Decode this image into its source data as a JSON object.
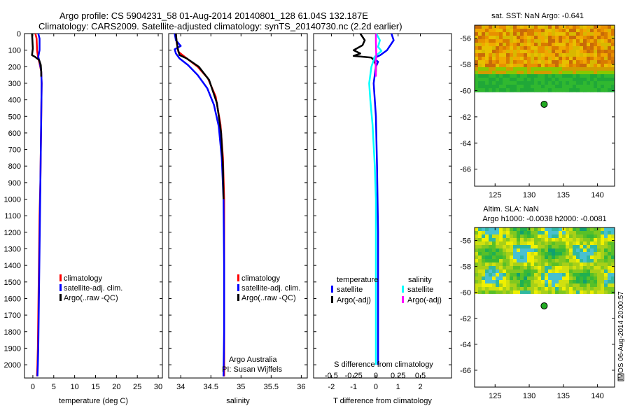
{
  "header": {
    "line1": "Argo profile: CS 5904231_58 01-Aug-2014 20140801_128 61.04S 132.187E",
    "line2": "Climatology: CARS2009. Satellite-adjusted climatology: synTS_20140730.nc (2.2d earlier)"
  },
  "colors": {
    "climatology": "#ff0000",
    "satellite": "#0000ff",
    "argo": "#000000",
    "sal_satellite": "#00ffff",
    "sal_argo": "#ff00ff",
    "float_marker": "#22aa22"
  },
  "depth_axis": {
    "ticks": [
      0,
      100,
      200,
      300,
      400,
      500,
      600,
      700,
      800,
      900,
      1000,
      1100,
      1200,
      1300,
      1400,
      1500,
      1600,
      1700,
      1800,
      1900,
      2000
    ],
    "ylim": [
      0,
      2080
    ]
  },
  "chart_data": [
    {
      "type": "line",
      "name": "temperature",
      "xlabel": "temperature (deg C)",
      "xlim": [
        -2,
        31
      ],
      "xticks": [
        0,
        5,
        10,
        15,
        20,
        25,
        30
      ],
      "ylim": [
        0,
        2080
      ],
      "legend": [
        "climatology",
        "satellite-adj. clim.",
        "Argo(..raw -QC)"
      ],
      "legend_placement": "lower-center",
      "series": [
        {
          "name": "climatology",
          "x": [
            0.6,
            0.9,
            1.0,
            1.3,
            1.6,
            2.0,
            2.1,
            2.0,
            1.9,
            1.8,
            1.6,
            1.5,
            1.4,
            1.3,
            1.2,
            1.1,
            1.0
          ],
          "y": [
            0,
            30,
            100,
            150,
            180,
            230,
            300,
            500,
            700,
            900,
            1100,
            1300,
            1500,
            1700,
            1900,
            2000,
            2070
          ]
        },
        {
          "name": "satellite-adj. clim.",
          "x": [
            1.3,
            1.6,
            1.6,
            1.3,
            1.7,
            2.0,
            2.1,
            2.0,
            1.9,
            1.8,
            1.7,
            1.6,
            1.5,
            1.4,
            1.3,
            1.2,
            1.1
          ],
          "y": [
            0,
            30,
            100,
            140,
            180,
            230,
            300,
            500,
            700,
            900,
            1100,
            1300,
            1500,
            1700,
            1900,
            2000,
            2070
          ]
        },
        {
          "name": "Argo(..raw -QC)",
          "x": [
            -0.2,
            -0.1,
            0.0,
            -0.2,
            0.5,
            1.5,
            1.9,
            2.0,
            2.0
          ],
          "y": [
            0,
            40,
            90,
            130,
            140,
            160,
            190,
            230,
            260
          ]
        }
      ]
    },
    {
      "type": "line",
      "name": "salinity",
      "xlabel": "salinity",
      "xlim": [
        33.8,
        36.1
      ],
      "xticks": [
        34,
        34.5,
        35,
        35.5,
        36
      ],
      "ylim": [
        0,
        2080
      ],
      "legend": [
        "climatology",
        "satellite-adj. clim.",
        "Argo(..raw -QC)"
      ],
      "legend_placement": "lower-center",
      "annotation": [
        "Argo Australia",
        "PI: Susan Wijffels"
      ],
      "series": [
        {
          "name": "climatology",
          "x": [
            33.92,
            33.93,
            33.96,
            34.1,
            34.28,
            34.45,
            34.58,
            34.66,
            34.7,
            34.72,
            34.72,
            34.72,
            34.72
          ],
          "y": [
            0,
            50,
            110,
            150,
            200,
            270,
            380,
            550,
            750,
            1000,
            1400,
            1800,
            2070
          ]
        },
        {
          "name": "satellite-adj. clim.",
          "x": [
            33.9,
            33.92,
            34.0,
            33.9,
            33.92,
            33.98,
            34.12,
            34.28,
            34.44,
            34.55,
            34.63,
            34.68,
            34.71,
            34.72,
            34.72,
            34.71
          ],
          "y": [
            0,
            40,
            75,
            95,
            120,
            150,
            190,
            250,
            330,
            430,
            560,
            750,
            1000,
            1400,
            1800,
            2070
          ]
        },
        {
          "name": "Argo(..raw -QC)",
          "x": [
            33.92,
            33.93,
            33.95,
            33.98,
            34.1,
            34.3,
            34.47,
            34.6,
            34.67,
            34.7,
            34.71
          ],
          "y": [
            0,
            40,
            90,
            130,
            150,
            200,
            280,
            420,
            600,
            800,
            1000
          ]
        }
      ]
    },
    {
      "type": "line",
      "name": "difference from climatology",
      "xlabel": "T difference from climatology",
      "xlabel_top": "S difference from climatology",
      "xlim": [
        -2.8,
        3.4
      ],
      "xticks": [
        -2,
        -1,
        0,
        1,
        2
      ],
      "xlim_top": [
        -0.7,
        0.85
      ],
      "xticks_top": [
        -0.5,
        -0.25,
        0,
        0.25,
        0.5
      ],
      "ylim": [
        0,
        2080
      ],
      "legend_headers": [
        "temperature",
        "salinity"
      ],
      "legend": [
        "satellite",
        "Argo(-adj)",
        "satellite",
        "Argo(-adj)"
      ],
      "legend_placement": "lower-center",
      "series": [
        {
          "name": "satellite",
          "group": "temperature",
          "x": [
            0.7,
            0.8,
            0.5,
            0.2,
            -0.1,
            0.1,
            0.0,
            -0.1,
            0.0,
            0.05,
            0.1,
            0.1,
            0.1
          ],
          "y": [
            0,
            40,
            100,
            130,
            150,
            170,
            200,
            300,
            500,
            800,
            1200,
            1600,
            2000
          ]
        },
        {
          "name": "Argo(-adj)",
          "group": "temperature",
          "x": [
            -0.7,
            -0.5,
            -0.6,
            -1.0,
            -0.7,
            -1.0,
            -0.2,
            -0.1,
            0.0,
            0.0
          ],
          "y": [
            0,
            40,
            70,
            100,
            120,
            135,
            145,
            160,
            190,
            230
          ]
        },
        {
          "name": "satellite",
          "group": "salinity",
          "x": [
            0.02,
            0.18,
            0.1,
            0.25,
            -0.05,
            -0.2,
            -0.3,
            -0.25,
            -0.15,
            -0.05,
            0.0,
            0.0,
            0.0
          ],
          "y": [
            0,
            40,
            80,
            105,
            140,
            200,
            300,
            400,
            550,
            800,
            1000,
            1600,
            2000
          ]
        },
        {
          "name": "Argo(-adj)",
          "group": "salinity",
          "x": [
            0.0,
            0.0,
            0.01,
            0.02,
            -0.02,
            0.0,
            0.0
          ],
          "y": [
            0,
            50,
            100,
            140,
            170,
            200,
            260
          ]
        }
      ]
    },
    {
      "type": "heatmap",
      "name": "sat. SST",
      "title": "sat. SST: NaN Argo: -0.641",
      "xticks": [
        125,
        130,
        135,
        140
      ],
      "yticks": [
        -56,
        -58,
        -60,
        -62,
        -64,
        -66
      ],
      "xlim": [
        122,
        142.5
      ],
      "ylim": [
        -67.3,
        -55
      ],
      "marker": {
        "lon": 132.187,
        "lat": -61.04
      },
      "data_lat_range": [
        -60.1,
        -55
      ],
      "palette": [
        "#d8b800",
        "#e8c000",
        "#f0a800",
        "#e89000",
        "#d87a00",
        "#c86a08",
        "#d09c00",
        "#88c800",
        "#30b830",
        "#20a838"
      ]
    },
    {
      "type": "heatmap",
      "name": "Altim. SLA",
      "title": "Altim. SLA: NaN",
      "subtitle": "Argo h1000: -0.0038 h2000: -0.0081",
      "xticks": [
        125,
        130,
        135,
        140
      ],
      "yticks": [
        -56,
        -58,
        -60,
        -62,
        -64,
        -66
      ],
      "xlim": [
        122,
        142.5
      ],
      "ylim": [
        -67.3,
        -55
      ],
      "marker": {
        "lon": 132.187,
        "lat": -61.04
      },
      "data_lat_range": [
        -60.1,
        -55
      ],
      "palette": [
        "#10a070",
        "#20b050",
        "#38b838",
        "#58c028",
        "#80c820",
        "#a8d018",
        "#d0e010",
        "#f0f000",
        "#30b8a0",
        "#48c0d0"
      ]
    }
  ],
  "footer": {
    "stamp": "IMOS 06-Aug-2014 20:00:57"
  }
}
